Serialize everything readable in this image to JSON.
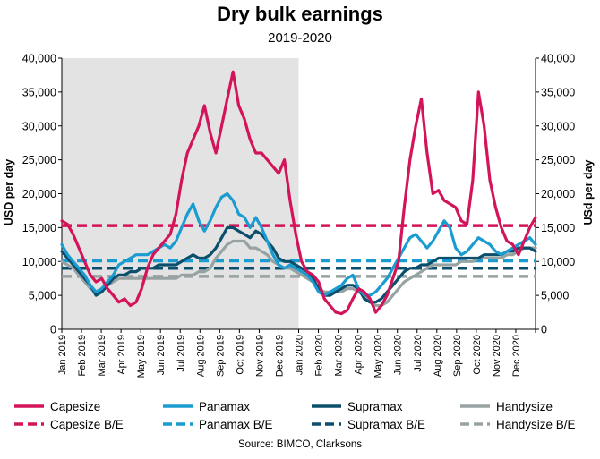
{
  "chart_data": {
    "type": "line",
    "title": "Dry bulk earnings",
    "subtitle": "2019-2020",
    "ylabel_left": "USD per day",
    "ylabel_right": "USd per day",
    "source": "Source: BIMCO, Clarksons",
    "ylim": [
      0,
      40000
    ],
    "yticks": [
      0,
      5000,
      10000,
      15000,
      20000,
      25000,
      30000,
      35000,
      40000
    ],
    "ytick_labels": [
      "0",
      "5,000",
      "10,000",
      "15,000",
      "20,000",
      "25,000",
      "30,000",
      "35,000",
      "40,000"
    ],
    "xlim": [
      "2019-01",
      "2021-01"
    ],
    "xtick_labels": [
      "Jan 2019",
      "Feb 2019",
      "Mar 2019",
      "Apr 2019",
      "May 2019",
      "Jun 2019",
      "Jul 2019",
      "Aug 2019",
      "Sep 2019",
      "Oct 2019",
      "Nov 2019",
      "Dec 2019",
      "Jan 2020",
      "Feb 2020",
      "Mar 2020",
      "Apr 2020",
      "May 2020",
      "Jun 2020",
      "Jul 2020",
      "Aug 2020",
      "Sep 2020",
      "Oct 2020",
      "Nov 2020",
      "Dec 2020"
    ],
    "shaded_region": [
      "2019-01",
      "2020-01"
    ],
    "shaded_color": "#e3e3e3",
    "grid": false,
    "legend_position": "bottom",
    "series": [
      {
        "name": "Capesize",
        "color": "#d4145a",
        "dash": false,
        "values": [
          16000,
          15500,
          14000,
          12000,
          10000,
          8000,
          7000,
          7500,
          6000,
          5000,
          4000,
          4500,
          3500,
          4000,
          6000,
          9000,
          11000,
          12000,
          13000,
          14000,
          17000,
          22000,
          26000,
          28000,
          30000,
          33000,
          29000,
          26000,
          30000,
          34000,
          38000,
          33000,
          31000,
          28000,
          26000,
          26000,
          25000,
          24000,
          23000,
          25000,
          19000,
          14000,
          10000,
          8500,
          8000,
          7000,
          4500,
          3500,
          2500,
          2300,
          2800,
          4500,
          6000,
          5500,
          4500,
          2500,
          3500,
          5000,
          7500,
          10000,
          18000,
          25000,
          30000,
          34000,
          26000,
          20000,
          20500,
          19000,
          18500,
          18000,
          16000,
          15500,
          22000,
          35000,
          30000,
          22000,
          18000,
          15000,
          13000,
          12500,
          11000,
          13000,
          15000,
          16500
        ]
      },
      {
        "name": "Panamax",
        "color": "#1a9cd1",
        "dash": false,
        "values": [
          12500,
          11000,
          10000,
          9000,
          8000,
          6500,
          5500,
          6000,
          7000,
          8000,
          9500,
          10000,
          10500,
          11000,
          11000,
          11000,
          11500,
          12000,
          12500,
          12000,
          13000,
          15000,
          17000,
          18500,
          16000,
          14500,
          16000,
          18000,
          19500,
          20000,
          19000,
          17000,
          16500,
          15000,
          16500,
          15000,
          13000,
          11000,
          9500,
          9000,
          9500,
          9000,
          8500,
          8000,
          7000,
          5500,
          5000,
          5500,
          6000,
          6500,
          7500,
          8000,
          6000,
          5000,
          5000,
          5500,
          6500,
          7500,
          9000,
          10500,
          12000,
          13500,
          14000,
          13000,
          12000,
          13000,
          14500,
          16000,
          15000,
          12000,
          11000,
          11500,
          12500,
          13500,
          13000,
          12500,
          11500,
          11000,
          11500,
          12000,
          12500,
          13000,
          13500,
          12500
        ]
      },
      {
        "name": "Supramax",
        "color": "#0b4f6c",
        "dash": false,
        "values": [
          11500,
          10500,
          9500,
          8500,
          7500,
          6500,
          5000,
          5500,
          6500,
          7500,
          8000,
          8000,
          8500,
          8500,
          9000,
          9000,
          9000,
          9500,
          9500,
          9500,
          9500,
          10000,
          10500,
          11000,
          10500,
          10500,
          11000,
          12000,
          13500,
          15000,
          15000,
          14500,
          14000,
          13500,
          14500,
          14000,
          13000,
          12000,
          10500,
          10000,
          10000,
          9500,
          9000,
          8500,
          7500,
          6000,
          5000,
          5000,
          5500,
          6000,
          6500,
          6500,
          6000,
          4500,
          4000,
          4000,
          4500,
          5500,
          6500,
          7500,
          8500,
          9000,
          9000,
          9500,
          9500,
          10000,
          10500,
          10500,
          10500,
          10500,
          10500,
          10500,
          10500,
          10500,
          11000,
          11000,
          11000,
          11000,
          11500,
          11500,
          12000,
          12000,
          12000,
          11500
        ]
      },
      {
        "name": "Handysize",
        "color": "#98a2a2",
        "dash": false,
        "values": [
          10000,
          9500,
          9000,
          8000,
          7000,
          6000,
          5500,
          6000,
          6500,
          7000,
          7500,
          7500,
          7500,
          7500,
          7500,
          7500,
          7500,
          7500,
          7500,
          7500,
          7500,
          8000,
          8000,
          8000,
          8500,
          8500,
          9000,
          10500,
          11500,
          12500,
          13000,
          13000,
          13000,
          12000,
          12000,
          11500,
          11000,
          10000,
          9500,
          9000,
          9000,
          8500,
          8000,
          7500,
          7000,
          6000,
          5500,
          5500,
          5500,
          5500,
          6000,
          6000,
          5500,
          5000,
          4000,
          3500,
          3500,
          4000,
          5000,
          6000,
          7000,
          7500,
          8000,
          8500,
          9000,
          9500,
          9500,
          9500,
          9500,
          9500,
          10000,
          10000,
          10000,
          10500,
          10500,
          10500,
          10500,
          10500,
          11000,
          11000,
          11500,
          12000,
          12000,
          12000
        ]
      },
      {
        "name": "Capesize B/E",
        "color": "#d4145a",
        "dash": true,
        "values": [
          15300,
          15300
        ]
      },
      {
        "name": "Panamax B/E",
        "color": "#1a9cd1",
        "dash": true,
        "values": [
          10100,
          10100
        ]
      },
      {
        "name": "Supramax B/E",
        "color": "#0b4f6c",
        "dash": true,
        "values": [
          9000,
          9000
        ]
      },
      {
        "name": "Handysize B/E",
        "color": "#98a2a2",
        "dash": true,
        "values": [
          7800,
          7800
        ]
      }
    ]
  }
}
